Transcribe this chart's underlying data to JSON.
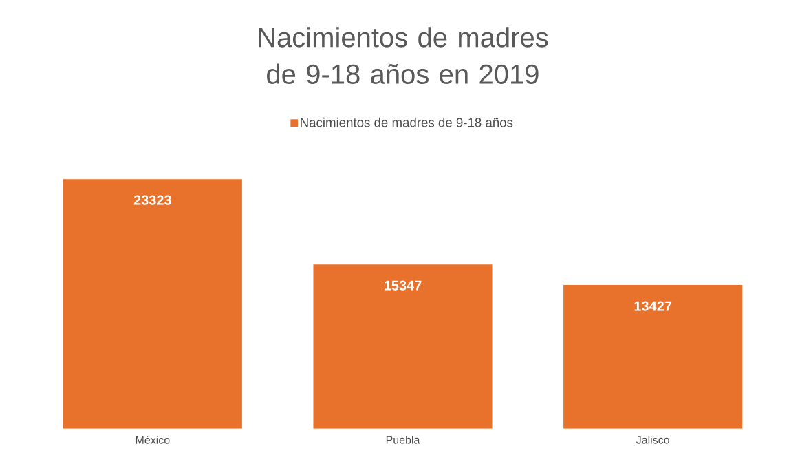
{
  "chart_data": {
    "type": "bar",
    "title": "Nacimientos de madres de 9-18 años en 2019",
    "categories": [
      "México",
      "Puebla",
      "Jalisco"
    ],
    "series": [
      {
        "name": "Nacimientos de madres de 9-18 años",
        "color": "#e8712b",
        "values": [
          23323,
          15347,
          13427
        ]
      }
    ],
    "data_labels": true,
    "legend": "top"
  }
}
